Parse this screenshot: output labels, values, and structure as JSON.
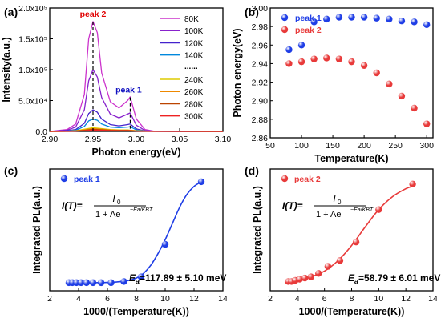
{
  "chart_data": [
    {
      "panel": "(a)",
      "type": "line",
      "xlabel": "Photon energy(eV)",
      "ylabel": "Intensity(a.u.)",
      "xlim": [
        2.9,
        3.1
      ],
      "ylim": [
        0,
        200000
      ],
      "xticks": [
        "2.90",
        "2.95",
        "3.00",
        "3.05",
        "3.10"
      ],
      "yticks": [
        "0.0",
        "5.0x10⁴",
        "1.0x10⁵",
        "1.5x10⁵",
        "2.0x10⁵"
      ],
      "grid": false,
      "legend_position": "top-right",
      "legend_ellipsis": "......",
      "annotations": [
        {
          "text": "peak 2",
          "x": 2.95,
          "y": 178000,
          "color": "#e00000"
        },
        {
          "text": "peak 1",
          "x": 2.993,
          "y": 55000,
          "color": "#1010c0"
        }
      ],
      "series": [
        {
          "name": "80K",
          "color": "#cc33cc",
          "x": [
            2.9,
            2.92,
            2.93,
            2.94,
            2.945,
            2.95,
            2.955,
            2.96,
            2.97,
            2.98,
            2.99,
            2.993,
            3.0,
            3.01,
            3.02,
            3.05,
            3.1
          ],
          "values": [
            0,
            3000,
            12000,
            60000,
            150000,
            178000,
            160000,
            95000,
            48000,
            38000,
            50000,
            56000,
            20000,
            3000,
            500,
            0,
            0
          ]
        },
        {
          "name": "100K",
          "color": "#8822cc",
          "x": [
            2.9,
            2.92,
            2.93,
            2.94,
            2.945,
            2.95,
            2.955,
            2.96,
            2.97,
            2.98,
            2.99,
            2.993,
            3.0,
            3.01,
            3.02,
            3.05,
            3.1
          ],
          "values": [
            0,
            2000,
            7000,
            35000,
            82000,
            100000,
            88000,
            55000,
            28000,
            22000,
            28000,
            30000,
            10000,
            1500,
            300,
            0,
            0
          ]
        },
        {
          "name": "120K",
          "color": "#4422cc",
          "x": [
            2.9,
            2.92,
            2.93,
            2.94,
            2.945,
            2.95,
            2.955,
            2.96,
            2.97,
            2.98,
            2.99,
            2.993,
            3.0,
            3.01,
            3.02,
            3.05,
            3.1
          ],
          "values": [
            0,
            1000,
            3000,
            13000,
            29000,
            35000,
            31000,
            20000,
            11000,
            9000,
            11000,
            12000,
            4000,
            800,
            200,
            0,
            0
          ]
        },
        {
          "name": "140K",
          "color": "#0088dd",
          "x": [
            2.9,
            2.92,
            2.93,
            2.94,
            2.945,
            2.95,
            2.955,
            2.96,
            2.97,
            2.98,
            2.99,
            2.993,
            3.0,
            3.01,
            3.02,
            3.05,
            3.1
          ],
          "values": [
            0,
            500,
            1800,
            8000,
            17000,
            20000,
            18000,
            12000,
            7000,
            6000,
            7000,
            7500,
            2500,
            500,
            100,
            0,
            0
          ]
        },
        {
          "name": "240K",
          "color": "#ddcc00",
          "x": [
            2.9,
            2.92,
            2.93,
            2.94,
            2.95,
            2.96,
            2.97,
            2.98,
            2.99,
            3.0,
            3.02,
            3.1
          ],
          "values": [
            0,
            300,
            1000,
            3500,
            6000,
            4500,
            3000,
            2500,
            2500,
            1200,
            100,
            0
          ]
        },
        {
          "name": "260K",
          "color": "#ee8800",
          "x": [
            2.9,
            2.92,
            2.93,
            2.94,
            2.95,
            2.96,
            2.97,
            2.98,
            2.99,
            3.0,
            3.02,
            3.1
          ],
          "values": [
            0,
            200,
            800,
            2500,
            4500,
            3500,
            2300,
            2000,
            2000,
            900,
            100,
            0
          ]
        },
        {
          "name": "280K",
          "color": "#bb4400",
          "x": [
            2.9,
            2.92,
            2.93,
            2.94,
            2.95,
            2.96,
            2.97,
            2.98,
            2.99,
            3.0,
            3.02,
            3.1
          ],
          "values": [
            0,
            150,
            600,
            1800,
            3200,
            2600,
            1800,
            1500,
            1500,
            700,
            80,
            0
          ]
        },
        {
          "name": "300K",
          "color": "#ee2222",
          "x": [
            2.9,
            2.92,
            2.93,
            2.94,
            2.95,
            2.96,
            2.97,
            2.98,
            2.99,
            3.0,
            3.02,
            3.1
          ],
          "values": [
            0,
            100,
            400,
            1200,
            2200,
            1800,
            1300,
            1100,
            1100,
            500,
            60,
            0
          ]
        }
      ]
    },
    {
      "panel": "(b)",
      "type": "scatter",
      "xlabel": "Temperature(K)",
      "ylabel": "Photon energy(eV)",
      "xlim": [
        50,
        310
      ],
      "ylim": [
        2.86,
        3.0
      ],
      "xticks": [
        "50",
        "100",
        "150",
        "200",
        "250",
        "300"
      ],
      "yticks": [
        "2.86",
        "2.88",
        "2.90",
        "2.92",
        "2.94",
        "2.96",
        "2.98",
        "3.00"
      ],
      "grid": false,
      "legend_position": "top-left",
      "series": [
        {
          "name": "peak 1",
          "color": "#1f3ee6",
          "x": [
            80,
            100,
            120,
            140,
            160,
            180,
            200,
            220,
            240,
            260,
            280,
            300
          ],
          "values": [
            2.955,
            2.96,
            2.985,
            2.988,
            2.99,
            2.99,
            2.99,
            2.989,
            2.988,
            2.986,
            2.985,
            2.982
          ]
        },
        {
          "name": "peak 2",
          "color": "#e83a3a",
          "x": [
            80,
            100,
            120,
            140,
            160,
            180,
            200,
            220,
            240,
            260,
            280,
            300
          ],
          "values": [
            2.94,
            2.942,
            2.945,
            2.946,
            2.945,
            2.942,
            2.938,
            2.93,
            2.918,
            2.905,
            2.892,
            2.875
          ]
        }
      ]
    },
    {
      "panel": "(c)",
      "type": "scatter",
      "xlabel": "1000/(Temperature(K))",
      "ylabel": "Integrated PL(a.u.)",
      "xlim": [
        2,
        14
      ],
      "xticks": [
        "2",
        "4",
        "6",
        "8",
        "10",
        "12",
        "14"
      ],
      "grid": false,
      "legend_position": "top-left",
      "equation": {
        "lhs": "I(T)=",
        "numerator": "I",
        "numerator_sub": "0",
        "denominator": "1 + Ae",
        "exponent": "−Ea/KBT"
      },
      "result": {
        "symbol": "E",
        "sub": "a",
        "value": "=117.89 ± 5.10 meV"
      },
      "series": [
        {
          "name": "peak 1",
          "color": "#1f3ee6",
          "x": [
            3.33,
            3.57,
            3.85,
            4.17,
            4.55,
            5.0,
            5.56,
            6.25,
            7.14,
            8.33,
            10.0,
            12.5
          ],
          "values": [
            0.07,
            0.07,
            0.07,
            0.07,
            0.07,
            0.07,
            0.07,
            0.07,
            0.08,
            0.12,
            0.4,
            0.94
          ]
        }
      ],
      "fit": {
        "color": "#1f3ee6",
        "x": [
          3.2,
          4,
          5,
          6,
          7,
          7.5,
          8,
          8.5,
          9,
          9.5,
          10,
          10.5,
          11,
          11.5,
          12,
          12.5
        ],
        "values": [
          0.07,
          0.07,
          0.07,
          0.072,
          0.08,
          0.09,
          0.11,
          0.15,
          0.22,
          0.32,
          0.44,
          0.58,
          0.72,
          0.83,
          0.9,
          0.94
        ]
      }
    },
    {
      "panel": "(d)",
      "type": "scatter",
      "xlabel": "1000/(Temperature(K))",
      "ylabel": "Integrated PL(a.u.)",
      "xlim": [
        2,
        14
      ],
      "xticks": [
        "2",
        "4",
        "6",
        "8",
        "10",
        "12",
        "14"
      ],
      "grid": false,
      "legend_position": "top-left",
      "equation": {
        "lhs": "I(T)=",
        "numerator": "I",
        "numerator_sub": "0",
        "denominator": "1 + Ae",
        "exponent": "−Ea/KBT"
      },
      "result": {
        "symbol": "E",
        "sub": "a",
        "value": "=58.79 ± 6.01 meV"
      },
      "series": [
        {
          "name": "peak 2",
          "color": "#e83a3a",
          "x": [
            3.33,
            3.57,
            3.85,
            4.17,
            4.55,
            5.0,
            5.56,
            6.25,
            7.14,
            8.33,
            10.0,
            12.5
          ],
          "values": [
            0.08,
            0.08,
            0.09,
            0.1,
            0.11,
            0.12,
            0.15,
            0.21,
            0.26,
            0.42,
            0.7,
            0.92
          ]
        }
      ],
      "fit": {
        "color": "#e83a3a",
        "x": [
          3.2,
          4,
          5,
          6,
          7,
          8,
          9,
          10,
          11,
          12,
          12.5
        ],
        "values": [
          0.08,
          0.09,
          0.12,
          0.17,
          0.26,
          0.39,
          0.55,
          0.7,
          0.81,
          0.88,
          0.9
        ]
      }
    }
  ]
}
